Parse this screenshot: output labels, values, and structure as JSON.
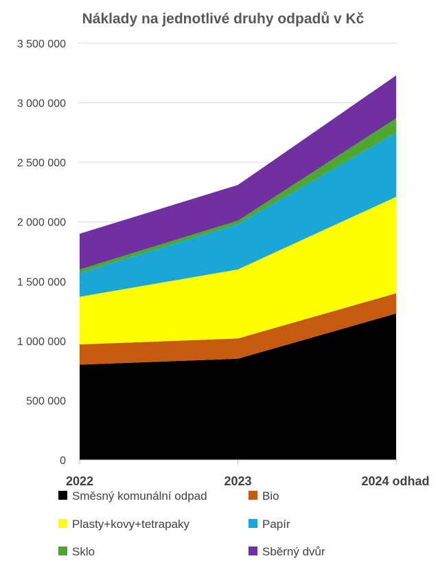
{
  "chart_data": {
    "type": "area",
    "stacked": true,
    "title": "Náklady na jednotlivé druhy odpadů v Kč",
    "xlabel": "",
    "ylabel": "",
    "categories": [
      "2022",
      "2023",
      "2024 odhad"
    ],
    "ylim": [
      0,
      3500000
    ],
    "yticks": [
      0,
      500000,
      1000000,
      1500000,
      2000000,
      2500000,
      3000000,
      3500000
    ],
    "ytick_labels": [
      "0",
      "500 000",
      "1 000 000",
      "1 500 000",
      "2 000 000",
      "2 500 000",
      "3 000 000",
      "3 500 000"
    ],
    "grid": true,
    "legend_position": "bottom",
    "series": [
      {
        "name": "Směsný komunální odpad",
        "color": "#000000",
        "values": [
          800000,
          850000,
          1230000
        ]
      },
      {
        "name": "Bio",
        "color": "#c55a11",
        "values": [
          170000,
          170000,
          170000
        ]
      },
      {
        "name": "Plasty+kovy+tetrapaky",
        "color": "#ffff00",
        "values": [
          400000,
          580000,
          810000
        ]
      },
      {
        "name": "Papír",
        "color": "#1aa7d8",
        "values": [
          200000,
          380000,
          540000
        ]
      },
      {
        "name": "Sklo",
        "color": "#4ea72e",
        "values": [
          30000,
          30000,
          120000
        ]
      },
      {
        "name": "Sběrný dvůr",
        "color": "#7030a0",
        "values": [
          300000,
          300000,
          360000
        ]
      }
    ]
  }
}
